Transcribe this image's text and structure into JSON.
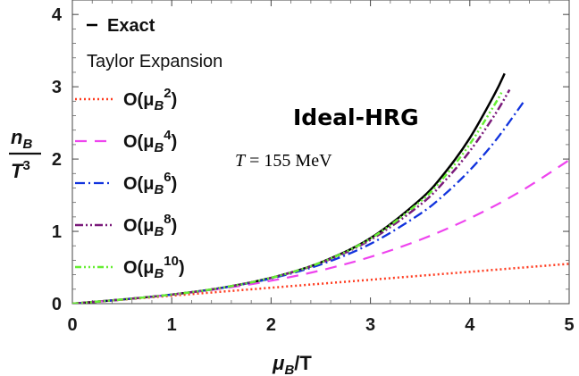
{
  "chart_data": {
    "type": "line",
    "title": "Ideal-HRG",
    "subtitle_parts": {
      "sym": "T",
      "rest": " = 155 MeV"
    },
    "xlabel_parts": {
      "mu": "μ",
      "sub": "B",
      "rest": "/T"
    },
    "ylabel_parts": {
      "n": "n",
      "nsub": "B",
      "t": "T",
      "tsup": "3"
    },
    "xlim": [
      0,
      5
    ],
    "ylim": [
      0,
      4.2
    ],
    "xticks": [
      0,
      1,
      2,
      3,
      4,
      5
    ],
    "yticks": [
      0,
      1,
      2,
      3,
      4
    ],
    "xtick_labels": [
      "0",
      "1",
      "2",
      "3",
      "4",
      "5"
    ],
    "ytick_labels": [
      "0",
      "1",
      "2",
      "3",
      "4"
    ],
    "legend_heading": "Taylor Expansion",
    "legend_position": "top-left",
    "grid": false,
    "series": [
      {
        "name": "Exact",
        "label_base": "Exact",
        "label_sup": "",
        "color": "#000000",
        "dash": "solid",
        "width": 2.5,
        "x": [
          0,
          0.5,
          1,
          1.5,
          2,
          2.5,
          3,
          3.5,
          3.75,
          4,
          4.25,
          4.35
        ],
        "y": [
          0,
          0.0574,
          0.1257,
          0.2184,
          0.3569,
          0.5699,
          0.9057,
          1.4381,
          1.8126,
          2.291,
          2.8995,
          3.1836
        ]
      },
      {
        "name": "O(μB²)",
        "label_base": "O(μ",
        "label_sup": "2",
        "color": "#ff3b1f",
        "dash": "2,3",
        "width": 2.5,
        "x": [
          0,
          1,
          2,
          3,
          4,
          5
        ],
        "y": [
          0,
          0.1102,
          0.2204,
          0.3306,
          0.4408,
          0.551
        ]
      },
      {
        "name": "O(μB⁴)",
        "label_base": "O(μ",
        "label_sup": "4",
        "color": "#ee44ee",
        "dash": "13,9",
        "width": 2.2,
        "x": [
          0,
          0.5,
          1,
          1.5,
          2,
          2.5,
          3,
          3.5,
          4,
          4.5,
          5
        ],
        "y": [
          0,
          0.0572,
          0.1238,
          0.2075,
          0.3168,
          0.4602,
          0.6461,
          0.8832,
          1.1798,
          1.5445,
          1.9857
        ]
      },
      {
        "name": "O(μB⁶)",
        "label_base": "O(μ",
        "label_sup": "6",
        "color": "#1133dd",
        "dash": "11,4,2,4",
        "width": 2.3,
        "x": [
          0,
          0.5,
          1,
          1.5,
          2,
          2.5,
          3,
          3.5,
          3.75,
          4,
          4.25,
          4.5,
          4.55
        ],
        "y": [
          0,
          0.0574,
          0.1255,
          0.2165,
          0.348,
          0.5418,
          0.8269,
          1.2416,
          1.5155,
          1.8454,
          2.2404,
          2.7104,
          2.8135
        ]
      },
      {
        "name": "O(μB⁸)",
        "label_base": "O(μ",
        "label_sup": "8",
        "color": "#7a1a7a",
        "dash": "9,3,2,3,2,3",
        "width": 2.5,
        "x": [
          0,
          0.5,
          1,
          1.5,
          2,
          2.5,
          3,
          3.5,
          3.75,
          4,
          4.25,
          4.4
        ],
        "y": [
          0,
          0.0574,
          0.1257,
          0.2183,
          0.3561,
          0.5643,
          0.8819,
          1.366,
          1.7003,
          2.1099,
          2.6093,
          2.9581
        ]
      },
      {
        "name": "O(μB¹⁰)",
        "label_base": "O(μ",
        "label_sup": "10",
        "color": "#66ee33",
        "dash": "7,3,2,3,2,3,2,3",
        "width": 2.5,
        "x": [
          0,
          0.5,
          1,
          1.5,
          2,
          2.5,
          3,
          3.5,
          3.75,
          4,
          4.25,
          4.32
        ],
        "y": [
          0,
          0.0574,
          0.1257,
          0.2184,
          0.3568,
          0.5689,
          0.8993,
          1.4087,
          1.7643,
          2.2065,
          2.7539,
          2.9241
        ]
      }
    ]
  }
}
